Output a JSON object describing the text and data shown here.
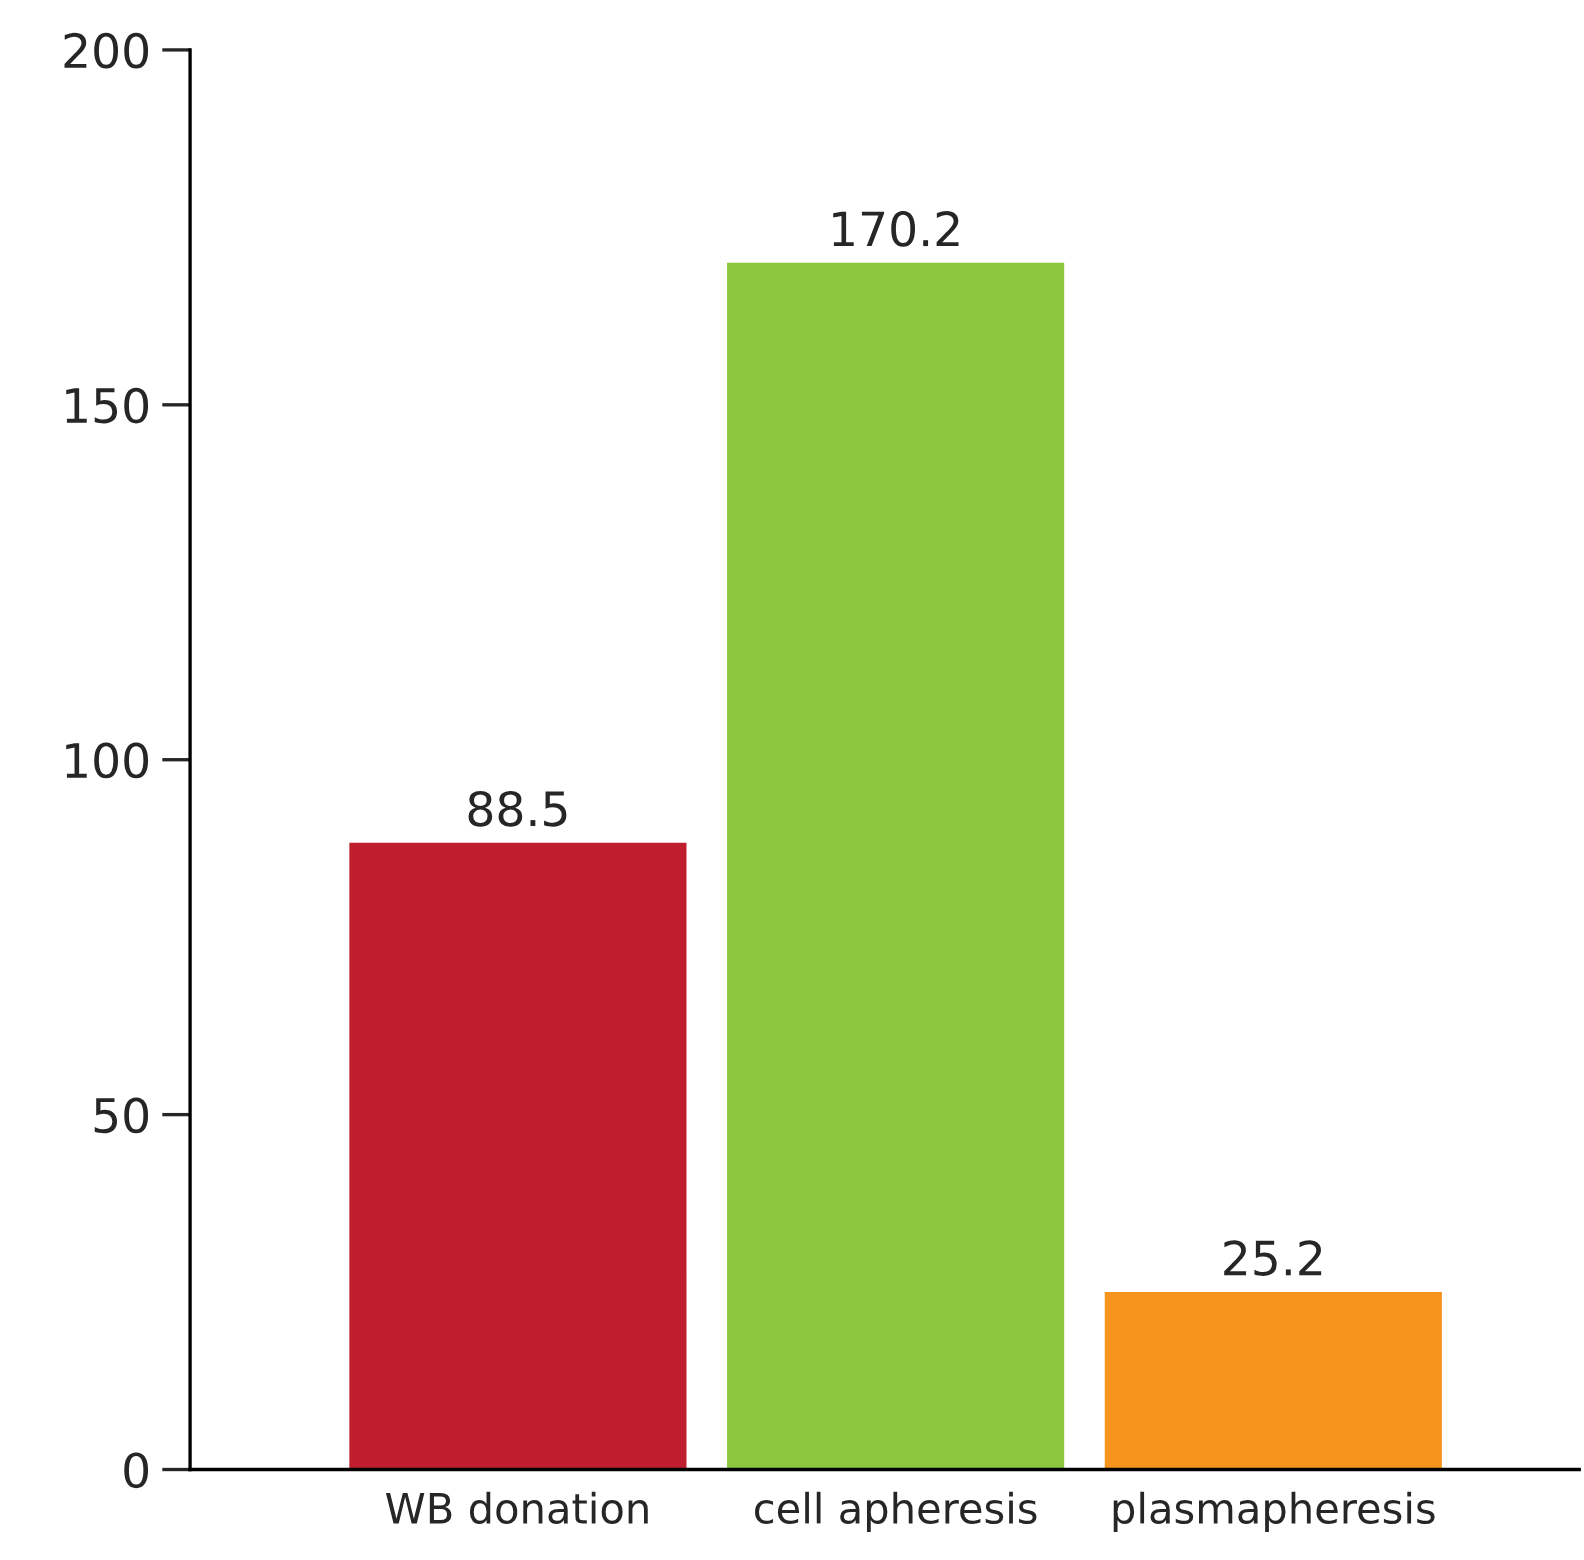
{
  "chart_data": {
    "type": "bar",
    "categories": [
      "WB donation",
      "cell apheresis",
      "plasmapheresis"
    ],
    "values": [
      88.5,
      170.2,
      25.2
    ],
    "colors": [
      "#be1e2d",
      "#8dc63f",
      "#f7941d"
    ],
    "ylim": [
      0,
      200
    ],
    "yticks": [
      0,
      50,
      100,
      150,
      200
    ],
    "data_labels": true,
    "grid": false,
    "legend": false
  }
}
